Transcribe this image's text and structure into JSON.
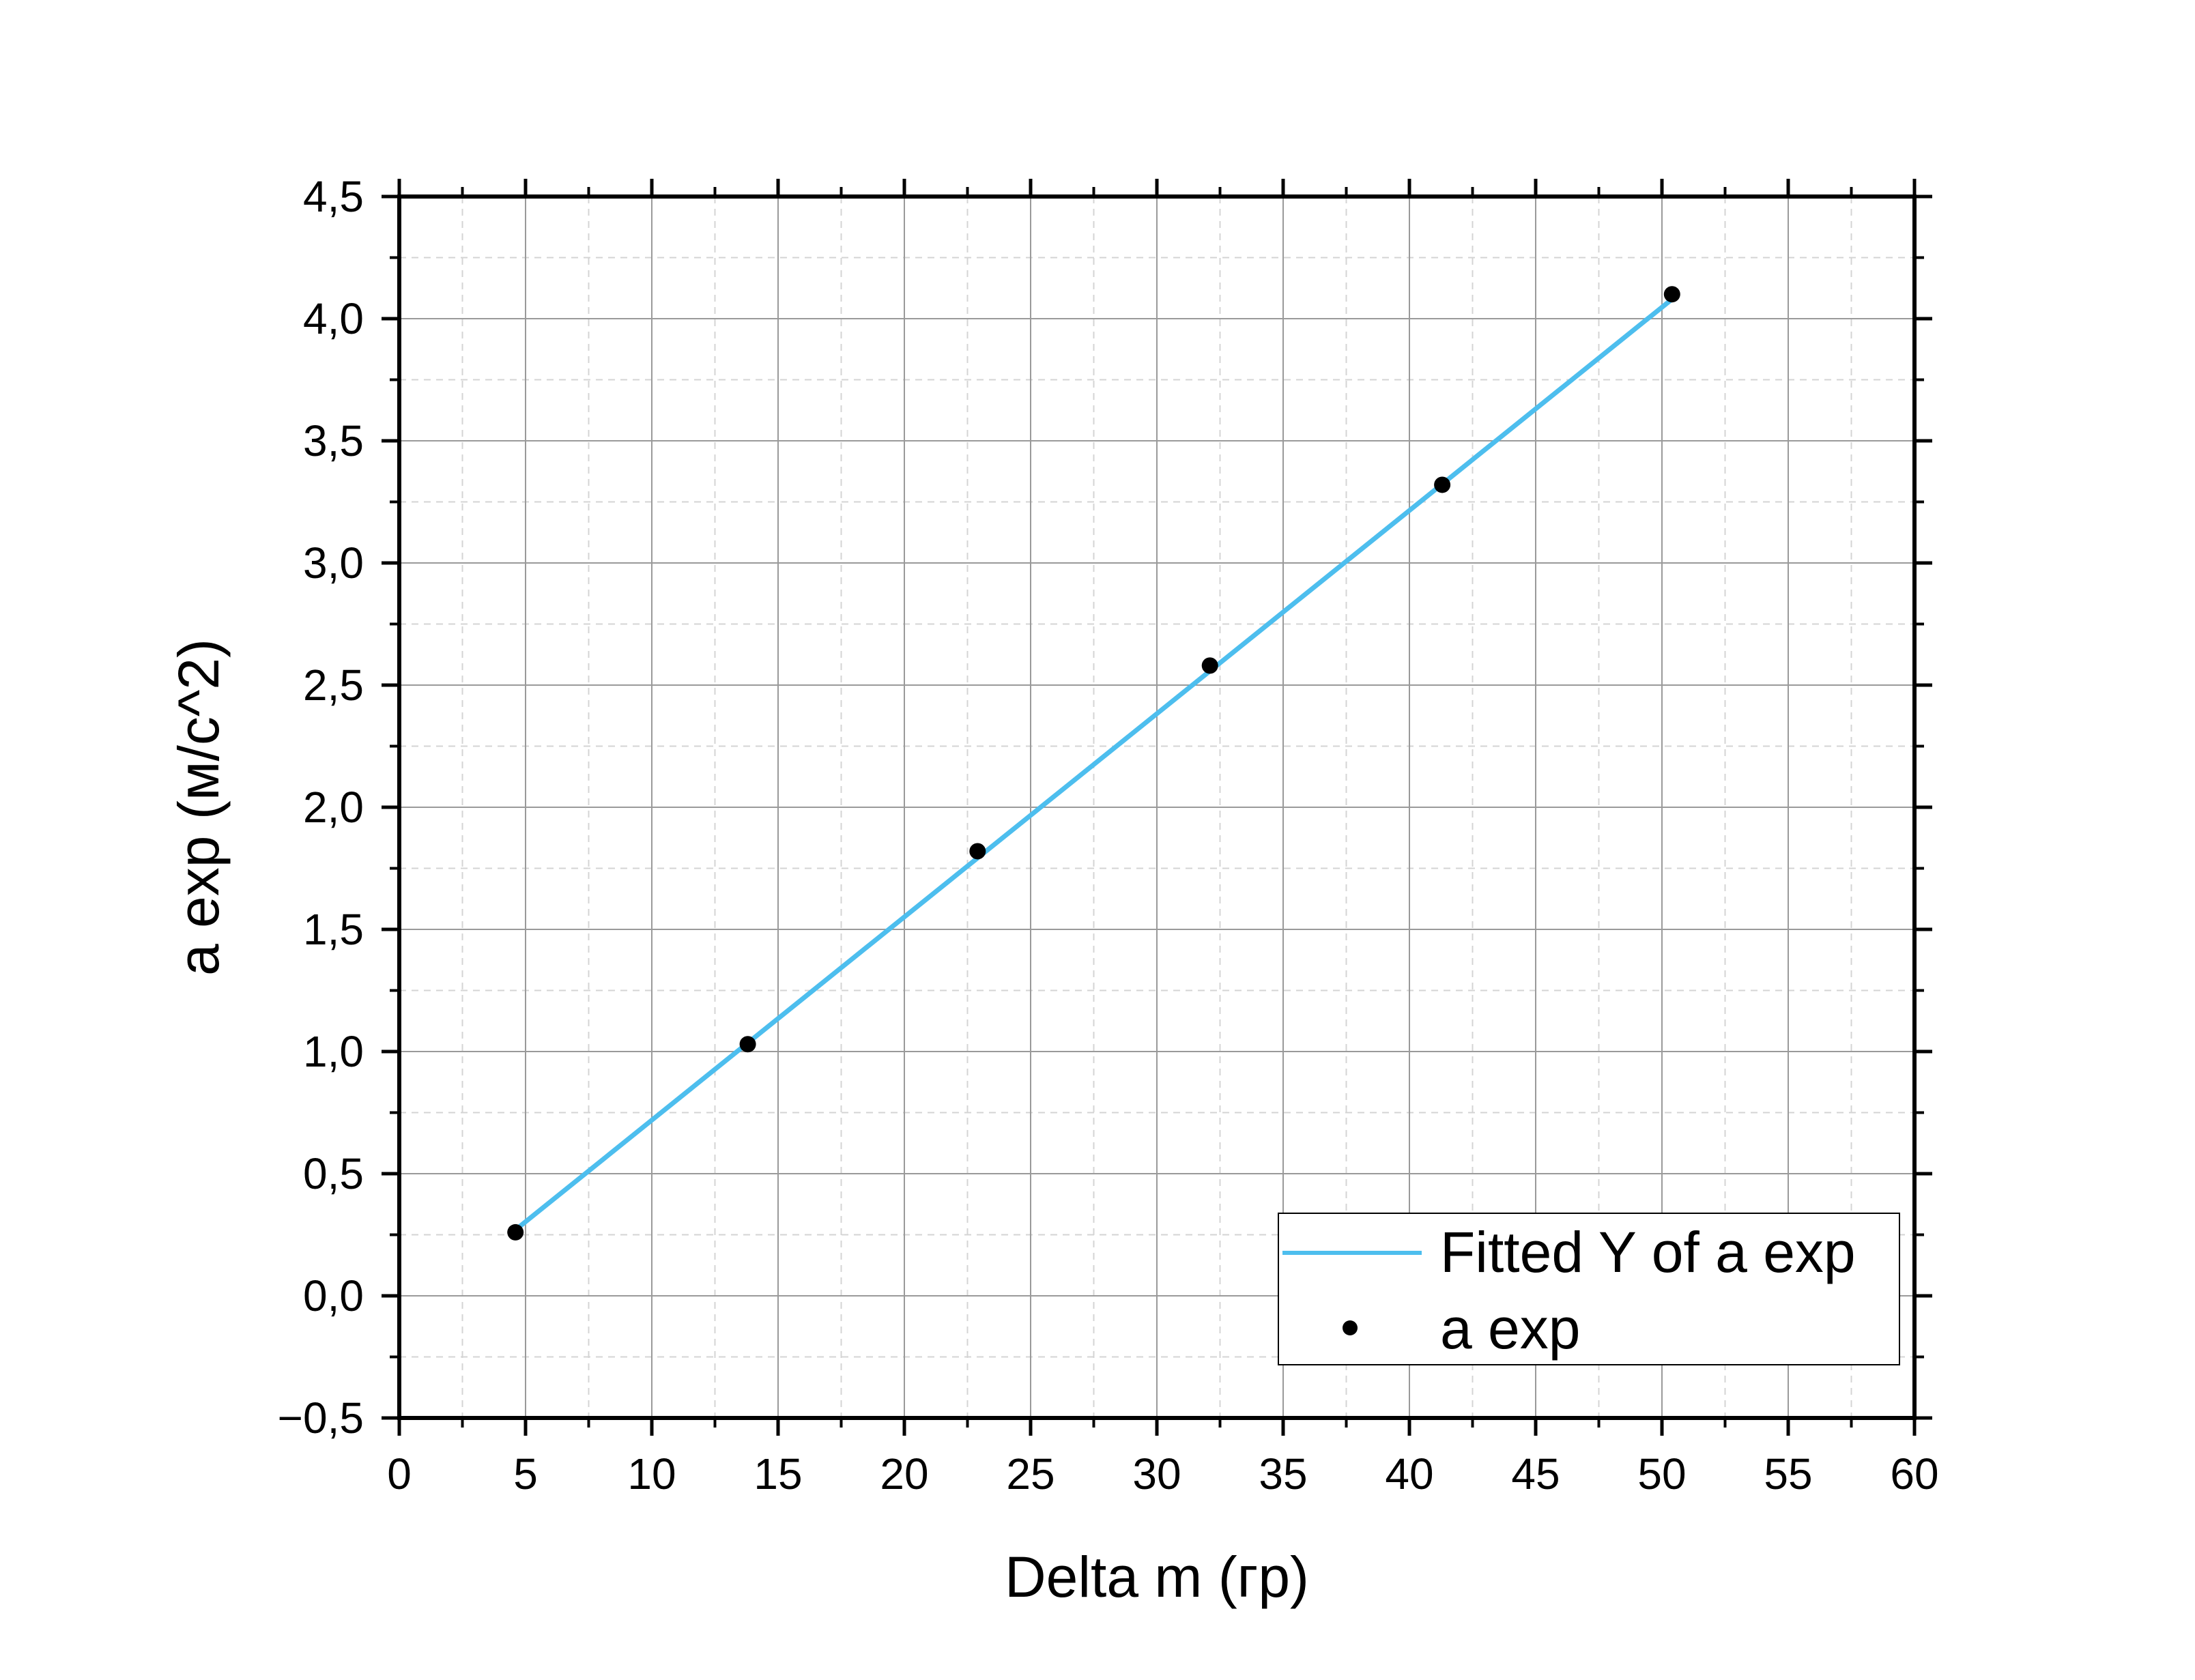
{
  "chart_data": {
    "type": "scatter",
    "xlabel": "Delta m (гр)",
    "ylabel": "a exp (м/с^2)",
    "xlim": [
      0,
      60
    ],
    "ylim": [
      -0.5,
      4.5
    ],
    "x_ticks": [
      0,
      5,
      10,
      15,
      20,
      25,
      30,
      35,
      40,
      45,
      50,
      55,
      60
    ],
    "x_tick_labels": [
      "0",
      "5",
      "10",
      "15",
      "20",
      "25",
      "30",
      "35",
      "40",
      "45",
      "50",
      "55",
      "60"
    ],
    "y_ticks": [
      -0.5,
      0,
      0.5,
      1,
      1.5,
      2,
      2.5,
      3,
      3.5,
      4,
      4.5
    ],
    "y_tick_labels": [
      "−0,5",
      "0,0",
      "0,5",
      "1,0",
      "1,5",
      "2,0",
      "2,5",
      "3,0",
      "3,5",
      "4,0",
      "4,5"
    ],
    "grid": true,
    "legend_position": "bottom-right",
    "series": [
      {
        "name": "Fitted Y of a exp",
        "kind": "line",
        "color": "#4DBEEE",
        "x": [
          4.6,
          50.4
        ],
        "y": [
          0.27,
          4.08
        ]
      },
      {
        "name": "a exp",
        "kind": "scatter",
        "color": "#000000",
        "x": [
          4.6,
          13.8,
          22.9,
          32.1,
          41.3,
          50.4
        ],
        "y": [
          0.26,
          1.03,
          1.82,
          2.58,
          3.32,
          4.1
        ]
      }
    ]
  }
}
